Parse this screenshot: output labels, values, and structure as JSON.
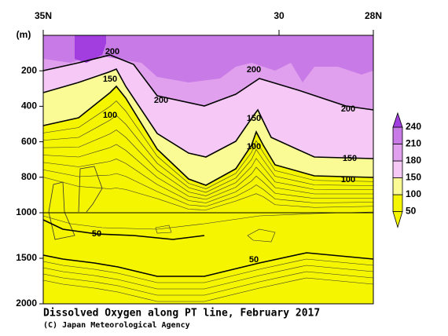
{
  "chart_data": {
    "type": "contour",
    "title": "Dissolved Oxygen along PT line, February 2017",
    "credit": "(C) Japan Meteorological Agency",
    "y_label": "(m)",
    "xlim": [
      35,
      28
    ],
    "xticks": [
      {
        "value": 35,
        "label": "35N"
      },
      30,
      {
        "value": 28,
        "label": "28N"
      }
    ],
    "ylim": [
      0,
      2000
    ],
    "yticks": [
      200,
      400,
      600,
      800,
      1000,
      1500,
      2000
    ],
    "hline": 1000,
    "levels": [
      50,
      100,
      150,
      180,
      210,
      240
    ],
    "colors": [
      "#f5f500",
      "#f5f500",
      "#fbfb96",
      "#f5c8f5",
      "#e0a0ee",
      "#c87ae6",
      "#a23ee0"
    ],
    "contour_labels": [
      200,
      200,
      200,
      200,
      150,
      150,
      150,
      100,
      100,
      100,
      50,
      50
    ]
  }
}
